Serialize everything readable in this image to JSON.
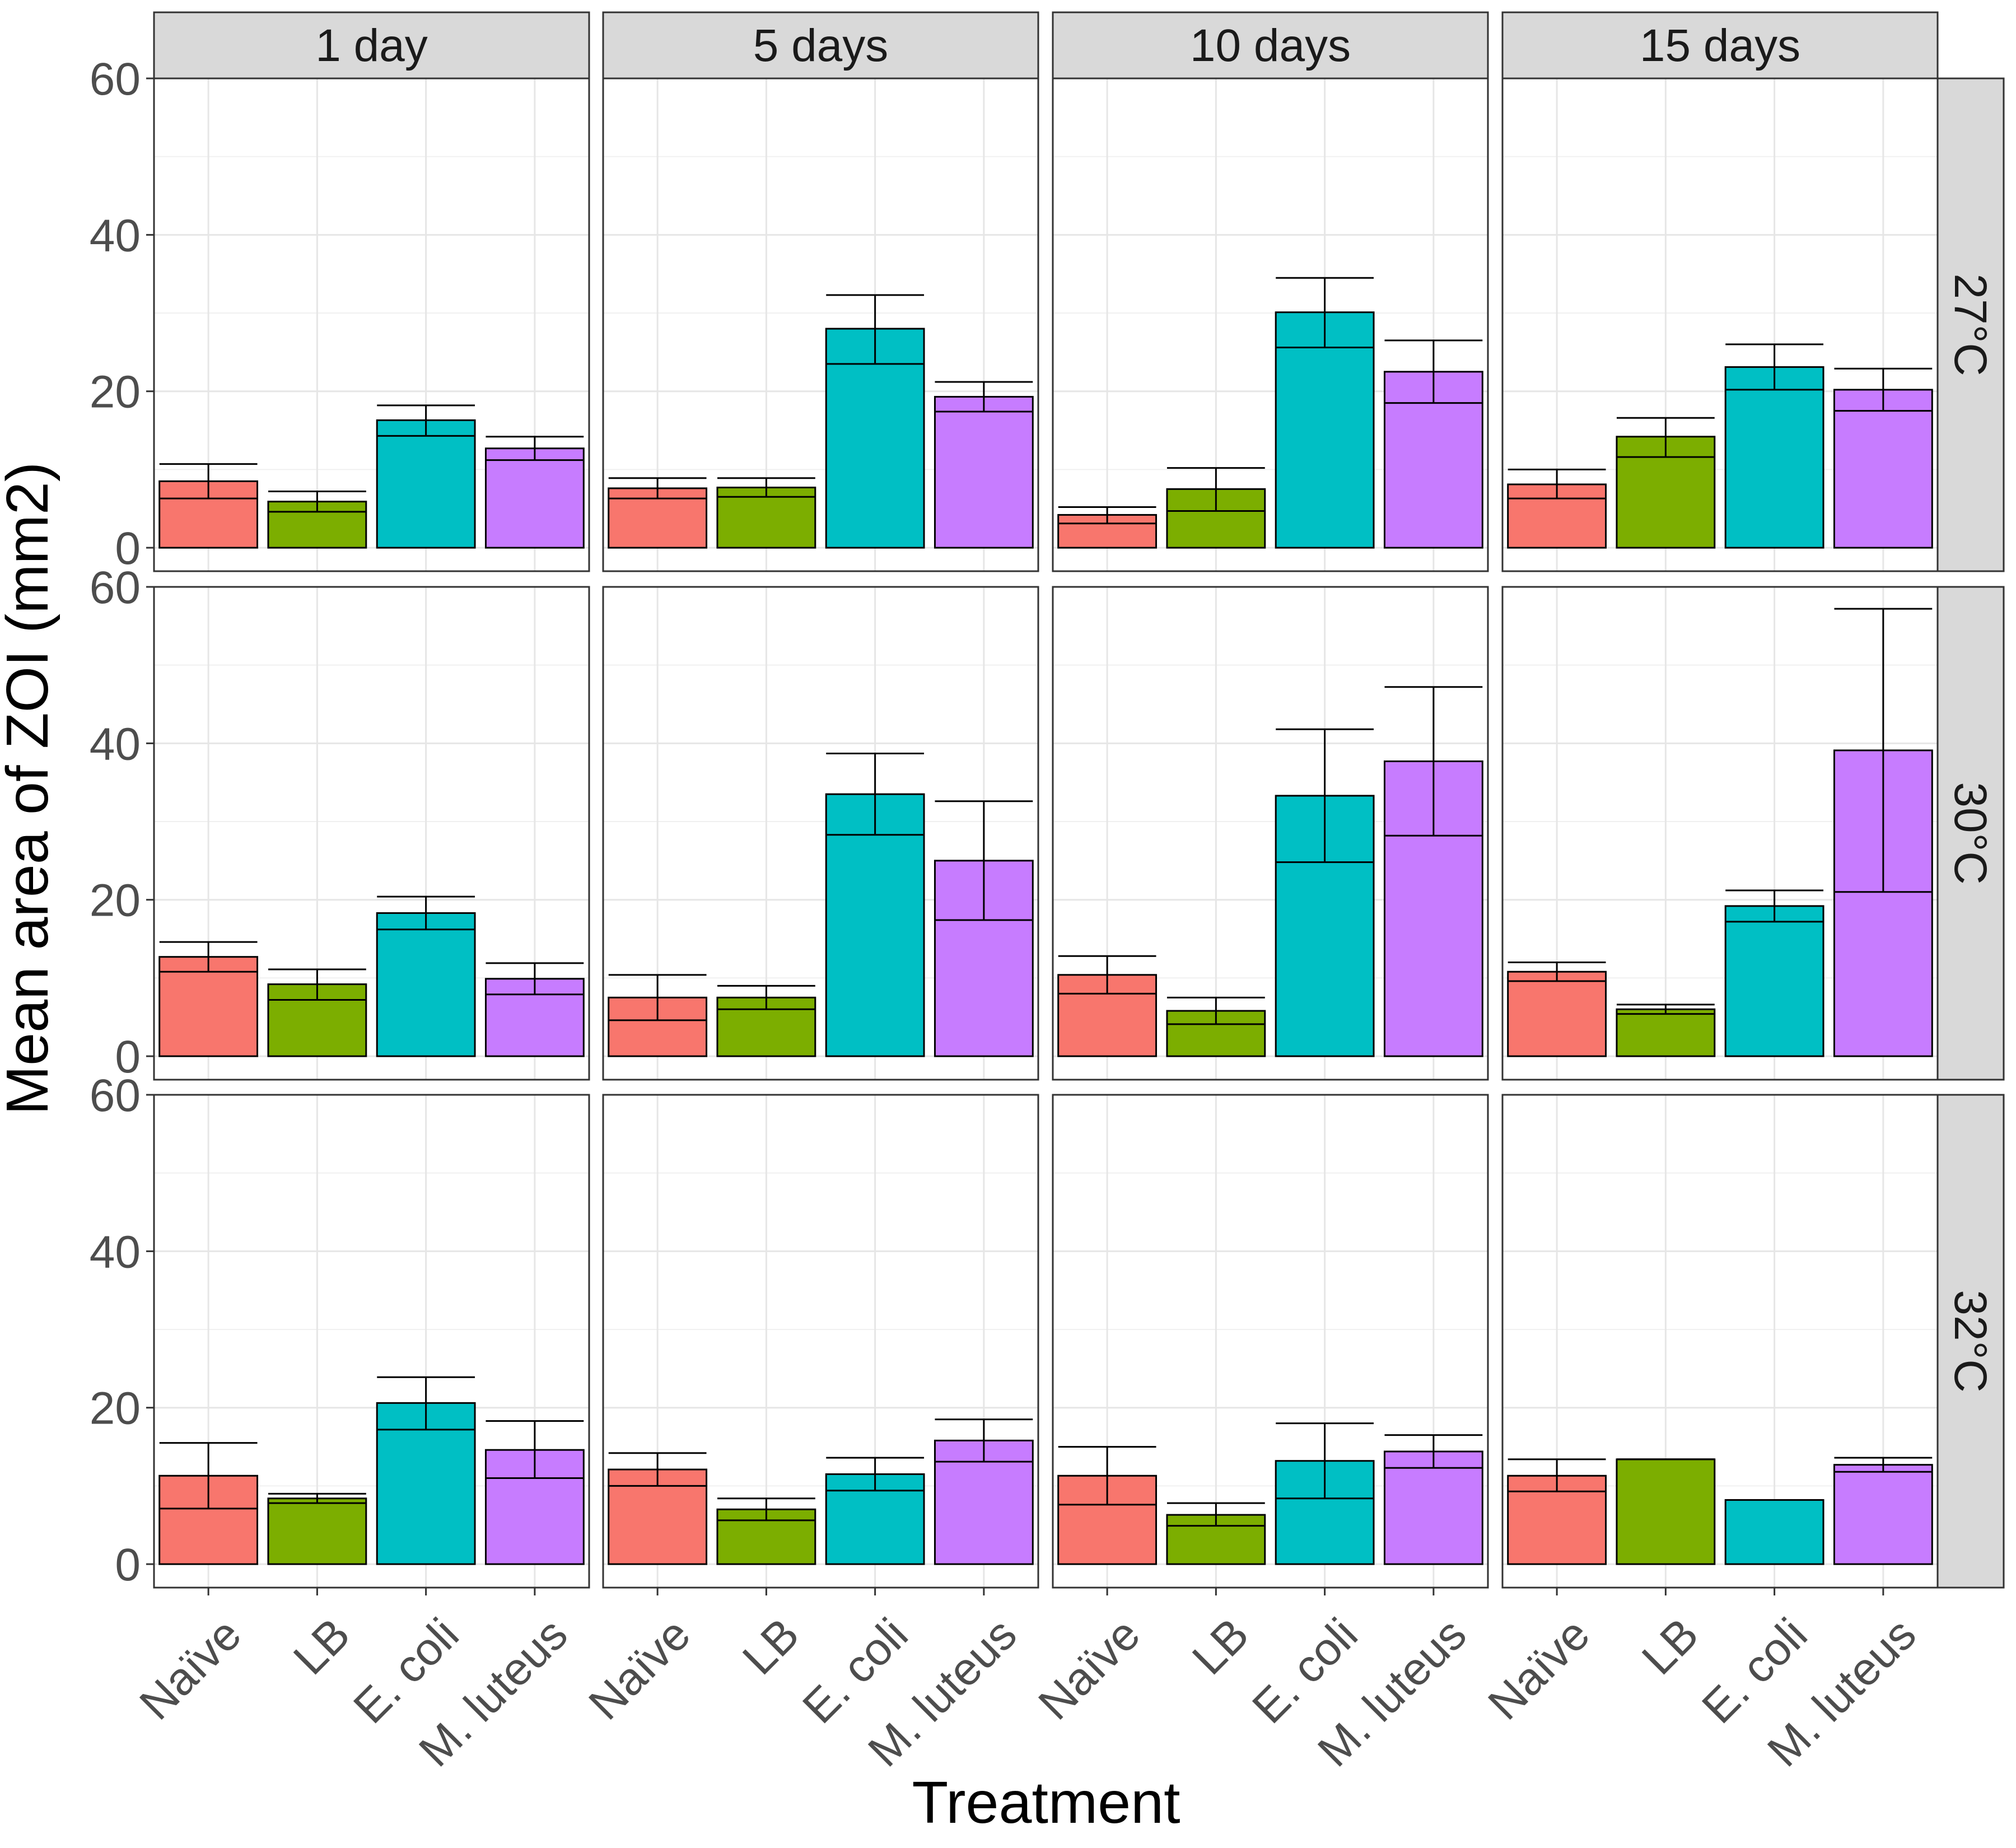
{
  "chart_data": {
    "type": "bar",
    "title": "",
    "xlabel": "Treatment",
    "ylabel": "Mean area of ZOI (mm2)",
    "ylim": [
      -3,
      60
    ],
    "yticks": [
      0,
      20,
      40,
      60
    ],
    "grid": true,
    "legend": "none",
    "categories": [
      "Naïve",
      "LB",
      "E. coli",
      "M. luteus"
    ],
    "category_colors": [
      "#F8766D",
      "#7CAE00",
      "#00BFC4",
      "#C77CFF"
    ],
    "columns": [
      "1 day",
      "5 days",
      "10 days",
      "15 days"
    ],
    "rows": [
      "27°C",
      "30°C",
      "32°C"
    ],
    "panels": [
      [
        {
          "values": [
            8.5,
            5.9,
            16.3,
            12.7
          ],
          "err_low": [
            6.3,
            4.6,
            14.3,
            11.2
          ],
          "err_high": [
            10.7,
            7.2,
            18.2,
            14.2
          ]
        },
        {
          "values": [
            7.6,
            7.7,
            28.0,
            19.3
          ],
          "err_low": [
            6.3,
            6.5,
            23.5,
            17.4
          ],
          "err_high": [
            8.9,
            8.9,
            32.3,
            21.2
          ]
        },
        {
          "values": [
            4.2,
            7.5,
            30.1,
            22.5
          ],
          "err_low": [
            3.1,
            4.7,
            25.6,
            18.5
          ],
          "err_high": [
            5.2,
            10.2,
            34.5,
            26.5
          ]
        },
        {
          "values": [
            8.1,
            14.2,
            23.1,
            20.2
          ],
          "err_low": [
            6.3,
            11.6,
            20.2,
            17.5
          ],
          "err_high": [
            10.0,
            16.6,
            26.0,
            22.9
          ]
        }
      ],
      [
        {
          "values": [
            12.7,
            9.2,
            18.3,
            9.9
          ],
          "err_low": [
            10.8,
            7.2,
            16.2,
            7.9
          ],
          "err_high": [
            14.6,
            11.1,
            20.4,
            11.9
          ]
        },
        {
          "values": [
            7.5,
            7.5,
            33.5,
            25.0
          ],
          "err_low": [
            4.6,
            6.0,
            28.3,
            17.4
          ],
          "err_high": [
            10.4,
            9.0,
            38.7,
            32.6
          ]
        },
        {
          "values": [
            10.4,
            5.8,
            33.3,
            37.7
          ],
          "err_low": [
            8.0,
            4.1,
            24.8,
            28.2
          ],
          "err_high": [
            12.8,
            7.5,
            41.8,
            47.2
          ]
        },
        {
          "values": [
            10.8,
            6.0,
            19.2,
            39.1
          ],
          "err_low": [
            9.6,
            5.4,
            17.2,
            21.0
          ],
          "err_high": [
            12.0,
            6.6,
            21.2,
            57.2
          ]
        }
      ],
      [
        {
          "values": [
            11.3,
            8.4,
            20.6,
            14.6
          ],
          "err_low": [
            7.1,
            7.8,
            17.2,
            11.0
          ],
          "err_high": [
            15.5,
            9.0,
            23.9,
            18.3
          ]
        },
        {
          "values": [
            12.1,
            7.0,
            11.5,
            15.8
          ],
          "err_low": [
            10.0,
            5.6,
            9.4,
            13.1
          ],
          "err_high": [
            14.2,
            8.4,
            13.6,
            18.5
          ]
        },
        {
          "values": [
            11.3,
            6.3,
            13.2,
            14.4
          ],
          "err_low": [
            7.6,
            4.9,
            8.4,
            12.3
          ],
          "err_high": [
            15.0,
            7.8,
            18.0,
            16.5
          ]
        },
        {
          "values": [
            11.3,
            13.4,
            8.2,
            12.7
          ],
          "err_low": [
            9.3,
            13.4,
            8.2,
            11.8
          ],
          "err_high": [
            13.4,
            13.4,
            8.2,
            13.6
          ]
        }
      ]
    ]
  }
}
